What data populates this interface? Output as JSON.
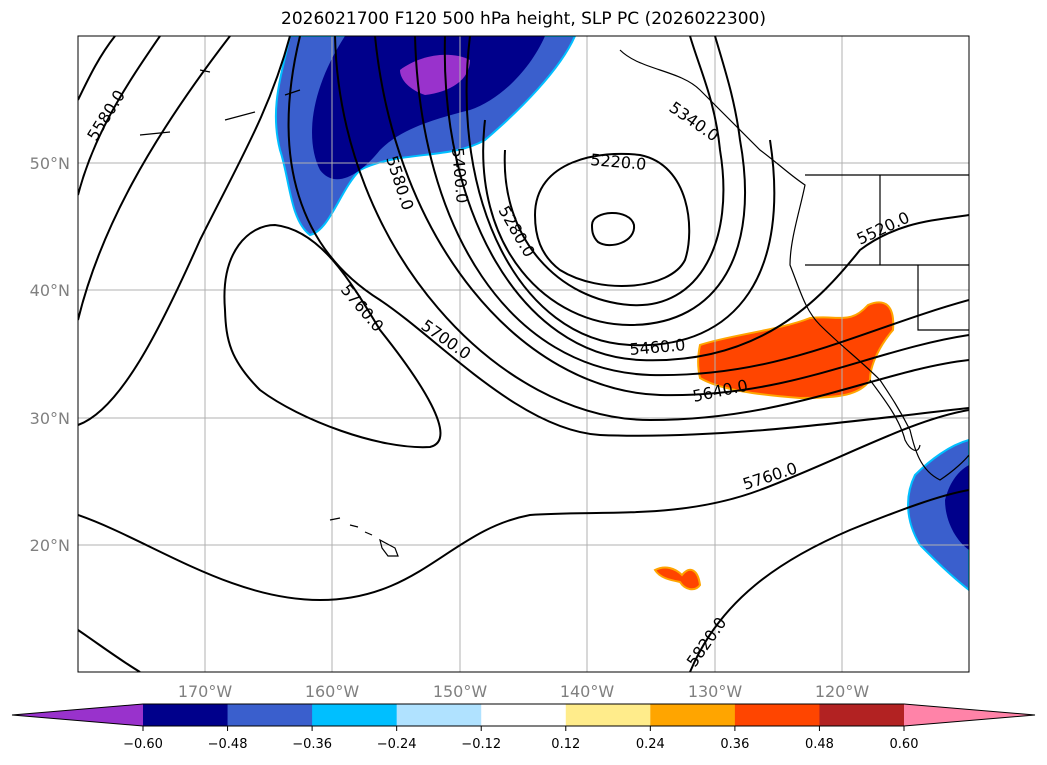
{
  "title": "2026021700 F120 500 hPa height, SLP PC (2026022300)",
  "chart_data": {
    "type": "contour-map",
    "title": "2026021700 F120 500 hPa height, SLP PC (2026022300)",
    "lon_range": [
      -180,
      -110
    ],
    "lat_range": [
      10,
      60
    ],
    "lon_ticks": [
      "170°W",
      "160°W",
      "150°W",
      "140°W",
      "130°W",
      "120°W"
    ],
    "lat_ticks": [
      "50°N",
      "40°N",
      "30°N",
      "20°N"
    ],
    "grid": true,
    "contour_labels": [
      "5580.0",
      "5340.0",
      "5220.0",
      "5580.0",
      "5400.0",
      "5280.0",
      "5520.0",
      "5760.0",
      "5700.0",
      "5460.0",
      "5640.0",
      "5760.0",
      "5820.0"
    ],
    "colorbar": {
      "ticks": [
        "−0.60",
        "−0.48",
        "−0.36",
        "−0.24",
        "−0.12",
        "0.12",
        "0.24",
        "0.36",
        "0.48",
        "0.60"
      ],
      "colors": [
        "#9932cc",
        "#00008b",
        "#3a5fcd",
        "#00bfff",
        "#b0e2ff",
        "#ffffff",
        "#ffec8b",
        "#ffa500",
        "#ff4500",
        "#b22222",
        "#ff83a8"
      ],
      "extend": "both"
    },
    "shaded_regions": [
      {
        "area": "Gulf of Alaska / Aleutians",
        "values": "-0.36 to below -0.60"
      },
      {
        "area": "Southern California / Baja offshore",
        "values": "0.36 to 0.48"
      },
      {
        "area": "near 17N 133W",
        "values": "0.36 to 0.48"
      },
      {
        "area": "Mexico coast 20-25N",
        "values": "-0.36 to -0.60"
      }
    ]
  }
}
